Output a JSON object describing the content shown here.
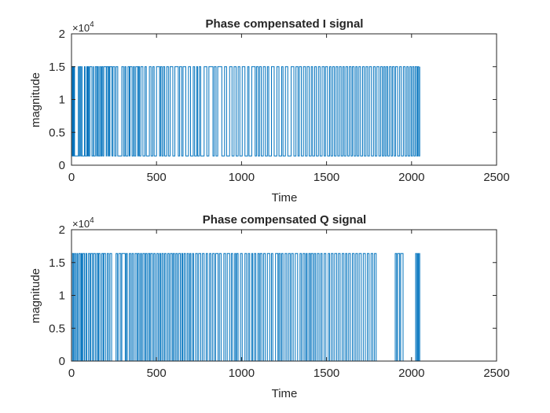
{
  "figure": {
    "background": "#ffffff",
    "line_color": "#0072bd",
    "axes_color": "#262626"
  },
  "chart_data": [
    {
      "type": "line",
      "title": "Phase compensated I signal",
      "xlabel": "Time",
      "ylabel": "magnitude",
      "exponent_label": "×10",
      "exponent_power": "4",
      "xlim": [
        0,
        2500
      ],
      "ylim": [
        0,
        20000
      ],
      "xticks": [
        0,
        500,
        1000,
        1500,
        2000,
        2500
      ],
      "yticks": [
        0,
        5000,
        10000,
        15000,
        20000
      ],
      "ytick_labels": [
        "0",
        "0.5",
        "1",
        "1.5",
        "2"
      ],
      "grid": false,
      "levels": [
        1400,
        15000
      ],
      "series": [
        {
          "x_start": 1,
          "x_end": 2048,
          "transitions": [
            1,
            5,
            9,
            13,
            14,
            18,
            40,
            42,
            48,
            54,
            60,
            62,
            76,
            80,
            90,
            94,
            98,
            102,
            108,
            120,
            128,
            130,
            140,
            148,
            152,
            158,
            166,
            172,
            178,
            184,
            190,
            204,
            206,
            214,
            218,
            224,
            226,
            238,
            244,
            254,
            262,
            272,
            296,
            306,
            314,
            320,
            332,
            340,
            344,
            356,
            364,
            370,
            378,
            390,
            394,
            400,
            408,
            420,
            432,
            440,
            458,
            468,
            478,
            486,
            500,
            518,
            524,
            532,
            540,
            548,
            560,
            570,
            580,
            596,
            608,
            628,
            636,
            648,
            656,
            672,
            688,
            700,
            716,
            724,
            736,
            742,
            752,
            760,
            780,
            796,
            808,
            832,
            840,
            850,
            860,
            884,
            900,
            912,
            930,
            944,
            956,
            968,
            980,
            990,
            1004,
            1020,
            1036,
            1044,
            1060,
            1080,
            1088,
            1098,
            1106,
            1116,
            1128,
            1140,
            1152,
            1160,
            1176,
            1192,
            1208,
            1220,
            1236,
            1244,
            1258,
            1272,
            1292,
            1308,
            1320,
            1332,
            1340,
            1352,
            1364,
            1376,
            1386,
            1398,
            1410,
            1418,
            1430,
            1440,
            1452,
            1462,
            1474,
            1486,
            1494,
            1506,
            1518,
            1526,
            1536,
            1546,
            1556,
            1566,
            1576,
            1586,
            1596,
            1604,
            1614,
            1624,
            1634,
            1644,
            1652,
            1662,
            1672,
            1680,
            1690,
            1700,
            1712,
            1722,
            1732,
            1742,
            1752,
            1764,
            1776,
            1786,
            1796,
            1808,
            1818,
            1828,
            1836,
            1844,
            1852,
            1860,
            1870,
            1880,
            1888,
            1898,
            1906,
            1918,
            1930,
            1940,
            1952,
            1962,
            1972,
            1980,
            1990,
            1998,
            2006,
            2014,
            2022,
            2030,
            2036,
            2042,
            2048
          ],
          "start_level": 1
        }
      ]
    },
    {
      "type": "line",
      "title": "Phase compensated Q signal",
      "xlabel": "Time",
      "ylabel": "magnitude",
      "exponent_label": "×10",
      "exponent_power": "4",
      "xlim": [
        0,
        2500
      ],
      "ylim": [
        0,
        20000
      ],
      "xticks": [
        0,
        500,
        1000,
        1500,
        2000,
        2500
      ],
      "yticks": [
        0,
        5000,
        10000,
        15000,
        20000
      ],
      "ytick_labels": [
        "0",
        "0.5",
        "1",
        "1.5",
        "2"
      ],
      "grid": false,
      "levels": [
        0,
        16384
      ],
      "series": [
        {
          "x_start": 1,
          "x_end": 2048,
          "transitions": [
            1,
            6,
            12,
            18,
            24,
            32,
            36,
            44,
            52,
            58,
            62,
            68,
            76,
            84,
            90,
            100,
            108,
            114,
            124,
            130,
            140,
            148,
            156,
            160,
            168,
            178,
            186,
            190,
            200,
            210,
            218,
            226,
            236,
            262,
            270,
            278,
            290,
            296,
            316,
            322,
            328,
            340,
            348,
            356,
            364,
            374,
            384,
            390,
            398,
            406,
            412,
            420,
            430,
            436,
            444,
            452,
            460,
            466,
            476,
            484,
            492,
            502,
            510,
            518,
            524,
            532,
            540,
            548,
            556,
            566,
            574,
            582,
            592,
            598,
            606,
            614,
            622,
            630,
            640,
            648,
            654,
            662,
            670,
            680,
            688,
            696,
            702,
            712,
            718,
            730,
            740,
            748,
            760,
            770,
            780,
            792,
            800,
            812,
            820,
            830,
            840,
            848,
            862,
            870,
            880,
            896,
            906,
            916,
            930,
            940,
            948,
            960,
            966,
            972,
            980,
            994,
            1004,
            1020,
            1030,
            1040,
            1048,
            1060,
            1066,
            1076,
            1084,
            1096,
            1104,
            1110,
            1120,
            1130,
            1140,
            1152,
            1166,
            1176,
            1184,
            1200,
            1214,
            1220,
            1228,
            1236,
            1244,
            1256,
            1266,
            1276,
            1286,
            1294,
            1304,
            1316,
            1330,
            1344,
            1352,
            1362,
            1372,
            1380,
            1386,
            1396,
            1404,
            1410,
            1420,
            1428,
            1436,
            1446,
            1456,
            1466,
            1474,
            1486,
            1496,
            1510,
            1518,
            1528,
            1538,
            1548,
            1560,
            1570,
            1580,
            1592,
            1602,
            1612,
            1620,
            1630,
            1640,
            1652,
            1662,
            1672,
            1682,
            1692,
            1704,
            1716,
            1728,
            1740,
            1750,
            1762,
            1772,
            1782,
            1792,
            1904,
            1912,
            1918,
            1930,
            1936,
            1950,
            2024,
            2030,
            2036,
            2040,
            2046,
            2048
          ],
          "start_level": 0,
          "x_end_flat": 2500
        }
      ]
    }
  ]
}
